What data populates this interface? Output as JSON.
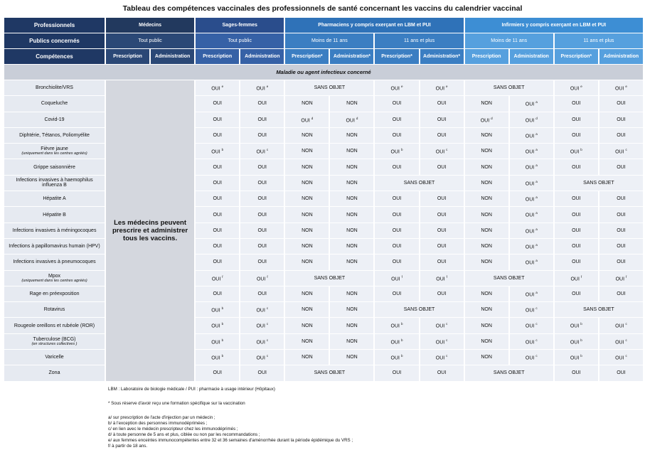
{
  "title": "Tableau des compétences vaccinales des professionnels de santé concernant les vaccins du calendrier vaccinal",
  "header": {
    "professionnels": "Professionnels",
    "publics_label": "Publics  concernés",
    "competences_label": "Compétences",
    "section": "Maladie ou agent infectieux concerné",
    "groups": [
      {
        "label": "Médecins",
        "cols": 2,
        "color": "#22395e"
      },
      {
        "label": "Sages-femmes",
        "cols": 2,
        "color": "#2a4d8c"
      },
      {
        "label": "Pharmaciens y compris exerçant en LBM et PUI",
        "cols": 4,
        "color": "#2f72b8"
      },
      {
        "label": "Infirmiers y compris exerçant en LBM et PUI",
        "cols": 4,
        "color": "#3d8ed4"
      }
    ],
    "publics": [
      {
        "label": "Tout public",
        "cols": 2,
        "color": "#2b4876"
      },
      {
        "label": "Tout public",
        "cols": 2,
        "color": "#3661a6"
      },
      {
        "label": "Moins de 11 ans",
        "cols": 2,
        "color": "#3b7ec2"
      },
      {
        "label": "11 ans et plus",
        "cols": 2,
        "color": "#3b7ec2"
      },
      {
        "label": "Moins de 11 ans",
        "cols": 2,
        "color": "#56a0de"
      },
      {
        "label": "11 ans et plus",
        "cols": 2,
        "color": "#56a0de"
      }
    ],
    "competences": [
      "Prescription",
      "Administration",
      "Prescription",
      "Administration",
      "Prescription*",
      "Administration*",
      "Prescription*",
      "Administration*",
      "Prescription",
      "Administration",
      "Prescription*",
      "Administration"
    ]
  },
  "medecins_note": "Les médecins peuvent prescrire et administrer tous les vaccins.",
  "rows": [
    {
      "label": "Bronchiolite/VRS",
      "cells": [
        {
          "text": "OUI",
          "sup": "e"
        },
        {
          "text": "OUI",
          "sup": "e"
        },
        {
          "text": "SANS OBJET",
          "span": 2
        },
        {
          "text": "OUI",
          "sup": "e"
        },
        {
          "text": "OUI",
          "sup": "e"
        },
        {
          "text": "SANS OBJET",
          "span": 2
        },
        {
          "text": "OUI",
          "sup": "e"
        },
        {
          "text": "OUI",
          "sup": "e"
        }
      ]
    },
    {
      "label": "Coqueluche",
      "cells": [
        "OUI",
        "OUI",
        "NON",
        "NON",
        "OUI",
        "OUI",
        "NON",
        {
          "text": "OUI",
          "sup": "a"
        },
        "OUI",
        "OUI"
      ]
    },
    {
      "label": "Covid-19",
      "cells": [
        "OUI",
        "OUI",
        {
          "text": "OUI",
          "sup": "d"
        },
        {
          "text": "OUI",
          "sup": "d"
        },
        "OUI",
        "OUI",
        {
          "text": "OUI",
          "sup": "d"
        },
        {
          "text": "OUI",
          "sup": "d"
        },
        "OUI",
        "OUI"
      ]
    },
    {
      "label": "Diphtérie, Tétanos, Poliomyélite",
      "cells": [
        "OUI",
        "OUI",
        "NON",
        "NON",
        "OUI",
        "OUI",
        "NON",
        {
          "text": "OUI",
          "sup": "a"
        },
        "OUI",
        "OUI"
      ]
    },
    {
      "label": "Fièvre jaune",
      "note": "(uniquement dans les centres agréés)",
      "cells": [
        {
          "text": "OUI",
          "sup": "b"
        },
        {
          "text": "OUI",
          "sup": "c"
        },
        "NON",
        "NON",
        {
          "text": "OUI",
          "sup": "b"
        },
        {
          "text": "OUI",
          "sup": "c"
        },
        "NON",
        {
          "text": "OUI",
          "sup": "a"
        },
        {
          "text": "OUI",
          "sup": "b"
        },
        {
          "text": "OUI",
          "sup": "c"
        }
      ]
    },
    {
      "label": "Grippe saisonnière",
      "cells": [
        "OUI",
        "OUI",
        "NON",
        "NON",
        "OUI",
        "OUI",
        "NON",
        {
          "text": "OUI",
          "sup": "a"
        },
        "OUI",
        "OUI"
      ]
    },
    {
      "label": "Infections invasives à haemophilus influenza B",
      "cells": [
        "OUI",
        "OUI",
        "NON",
        "NON",
        {
          "text": "SANS OBJET",
          "span": 2
        },
        "NON",
        {
          "text": "OUI",
          "sup": "a"
        },
        {
          "text": "SANS OBJET",
          "span": 2
        }
      ]
    },
    {
      "label": "Hépatite A",
      "cells": [
        "OUI",
        "OUI",
        "NON",
        "NON",
        "OUI",
        "OUI",
        "NON",
        {
          "text": "OUI",
          "sup": "a"
        },
        "OUI",
        "OUI"
      ]
    },
    {
      "label": "Hépatite B",
      "cells": [
        "OUI",
        "OUI",
        "NON",
        "NON",
        "OUI",
        "OUI",
        "NON",
        {
          "text": "OUI",
          "sup": "a"
        },
        "OUI",
        "OUI"
      ]
    },
    {
      "label": "Infections invasives à méningocoques",
      "cells": [
        "OUI",
        "OUI",
        "NON",
        "NON",
        "OUI",
        "OUI",
        "NON",
        {
          "text": "OUI",
          "sup": "a"
        },
        "OUI",
        "OUI"
      ]
    },
    {
      "label": "Infections à papillomavirus humain (HPV)",
      "cells": [
        "OUI",
        "OUI",
        "NON",
        "NON",
        "OUI",
        "OUI",
        "NON",
        {
          "text": "OUI",
          "sup": "a"
        },
        "OUI",
        "OUI"
      ]
    },
    {
      "label": "Infections invasives à pneumocoques",
      "cells": [
        "OUI",
        "OUI",
        "NON",
        "NON",
        "OUI",
        "OUI",
        "NON",
        {
          "text": "OUI",
          "sup": "a"
        },
        "OUI",
        "OUI"
      ]
    },
    {
      "label": "Mpox",
      "note": "(uniquement dans les centres agréés)",
      "cells": [
        {
          "text": "OUI",
          "sup": "f"
        },
        {
          "text": "OUI",
          "sup": "f"
        },
        {
          "text": "SANS OBJET",
          "span": 2
        },
        {
          "text": "OUI",
          "sup": "f"
        },
        {
          "text": "OUI",
          "sup": "f"
        },
        {
          "text": "SANS OBJET",
          "span": 2
        },
        {
          "text": "OUI",
          "sup": "f"
        },
        {
          "text": "OUI",
          "sup": "f"
        }
      ]
    },
    {
      "label": "Rage en préexposition",
      "cells": [
        "OUI",
        "OUI",
        "NON",
        "NON",
        "OUI",
        "OUI",
        "NON",
        {
          "text": "OUI",
          "sup": "a"
        },
        "OUI",
        "OUI"
      ]
    },
    {
      "label": "Rotavirus",
      "cells": [
        {
          "text": "OUI",
          "sup": "b"
        },
        {
          "text": "OUI",
          "sup": "c"
        },
        "NON",
        "NON",
        {
          "text": "SANS OBJET",
          "span": 2
        },
        "NON",
        {
          "text": "OUI",
          "sup": "c"
        },
        {
          "text": "SANS OBJET",
          "span": 2
        }
      ]
    },
    {
      "label": "Rougeole oreillons et rubéole (ROR)",
      "cells": [
        {
          "text": "OUI",
          "sup": "b"
        },
        {
          "text": "OUI",
          "sup": "c"
        },
        "NON",
        "NON",
        {
          "text": "OUI",
          "sup": "b"
        },
        {
          "text": "OUI",
          "sup": "c"
        },
        "NON",
        {
          "text": "OUI",
          "sup": "c"
        },
        {
          "text": "OUI",
          "sup": "b"
        },
        {
          "text": "OUI",
          "sup": "c"
        }
      ]
    },
    {
      "label": "Tuberculose (BCG)",
      "note": "(en structures collectives )",
      "cells": [
        {
          "text": "OUI",
          "sup": "b"
        },
        {
          "text": "OUI",
          "sup": "c"
        },
        "NON",
        "NON",
        {
          "text": "OUI",
          "sup": "b"
        },
        {
          "text": "OUI",
          "sup": "c"
        },
        "NON",
        {
          "text": "OUI",
          "sup": "c"
        },
        {
          "text": "OUI",
          "sup": "b"
        },
        {
          "text": "OUI",
          "sup": "c"
        }
      ]
    },
    {
      "label": "Varicelle",
      "cells": [
        {
          "text": "OUI",
          "sup": "b"
        },
        {
          "text": "OUI",
          "sup": "c"
        },
        "NON",
        "NON",
        {
          "text": "OUI",
          "sup": "b"
        },
        {
          "text": "OUI",
          "sup": "c"
        },
        "NON",
        {
          "text": "OUI",
          "sup": "c"
        },
        {
          "text": "OUI",
          "sup": "b"
        },
        {
          "text": "OUI",
          "sup": "c"
        }
      ]
    },
    {
      "label": "Zona",
      "cells": [
        "OUI",
        "OUI",
        {
          "text": "SANS OBJET",
          "span": 2
        },
        "OUI",
        "OUI",
        {
          "text": "SANS OBJET",
          "span": 2
        },
        "OUI",
        "OUI"
      ]
    }
  ],
  "footnotes": [
    "LBM : Laboratoire de biologie médicale  /   PUI : pharmacie à usage intérieur (Hôpitaux)",
    "* Sous réserve d'avoir reçu une formation spécifique sur la vaccination",
    "a/ sur prescription de l'acte d'injection par un médecin ;",
    "b/ à l'exception des personnes immunodéprimées ;",
    "c/ en lien avec le médecin prescripteur chez les immunodéprimés ;",
    "d/ à toute personne de 5 ans et plus, ciblée ou non par les recommandations ;",
    "e/ aux femmes enceintes immunocompétentes entre 32 et 36 semaines d'aménorrhée durant la période épidémique du VRS ;",
    "f/ à partir de 18 ans."
  ]
}
